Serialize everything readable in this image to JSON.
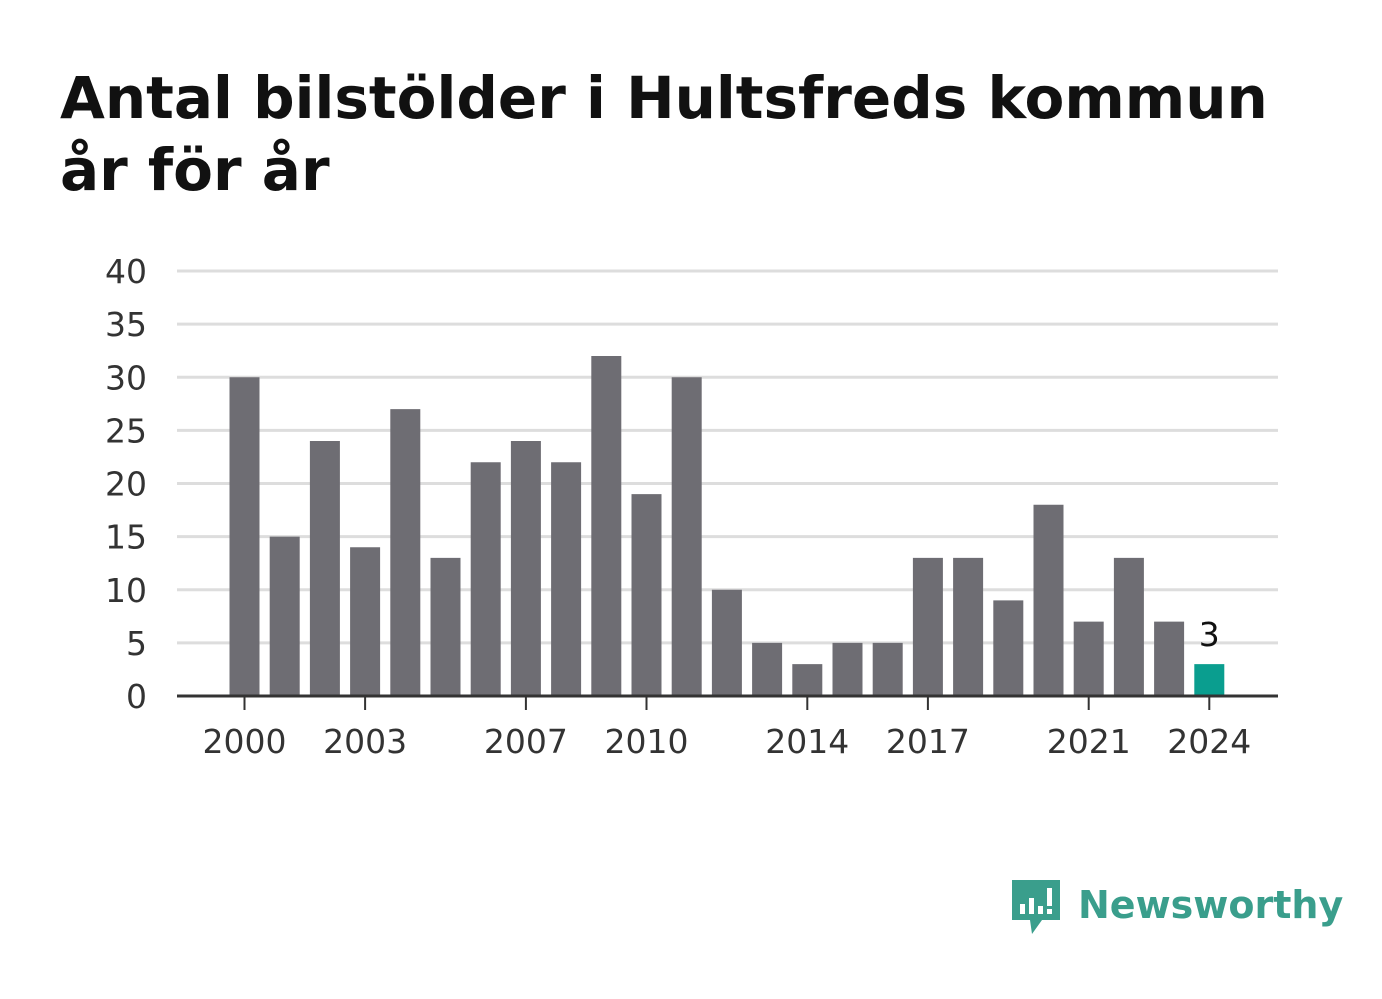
{
  "title": "Antal bilstölder i Hultsfreds kommun år för år",
  "brand": {
    "name": "Newsworthy",
    "color": "#3a9e8c"
  },
  "chart_data": {
    "type": "bar",
    "title": "Antal bilstölder i Hultsfreds kommun år för år",
    "xlabel": "",
    "ylabel": "",
    "ylim": [
      0,
      40
    ],
    "yticks": [
      0,
      5,
      10,
      15,
      20,
      25,
      30,
      35,
      40
    ],
    "xtick_labels": [
      "2000",
      "2003",
      "2007",
      "2010",
      "2014",
      "2017",
      "2021",
      "2024"
    ],
    "categories": [
      "2000",
      "2001",
      "2002",
      "2003",
      "2004",
      "2005",
      "2006",
      "2007",
      "2008",
      "2009",
      "2010",
      "2011",
      "2012",
      "2013",
      "2014",
      "2015",
      "2016",
      "2017",
      "2018",
      "2019",
      "2020",
      "2021",
      "2022",
      "2023",
      "2024"
    ],
    "values": [
      30,
      15,
      24,
      14,
      27,
      13,
      22,
      24,
      22,
      32,
      19,
      30,
      10,
      5,
      3,
      5,
      5,
      13,
      13,
      9,
      18,
      7,
      13,
      7,
      3
    ],
    "highlight": {
      "category": "2024",
      "label": "3"
    },
    "grid": true,
    "colors": {
      "bar": "#6e6d73",
      "highlight": "#0a9e8f",
      "grid": "#dddddd",
      "axis": "#333333"
    }
  }
}
